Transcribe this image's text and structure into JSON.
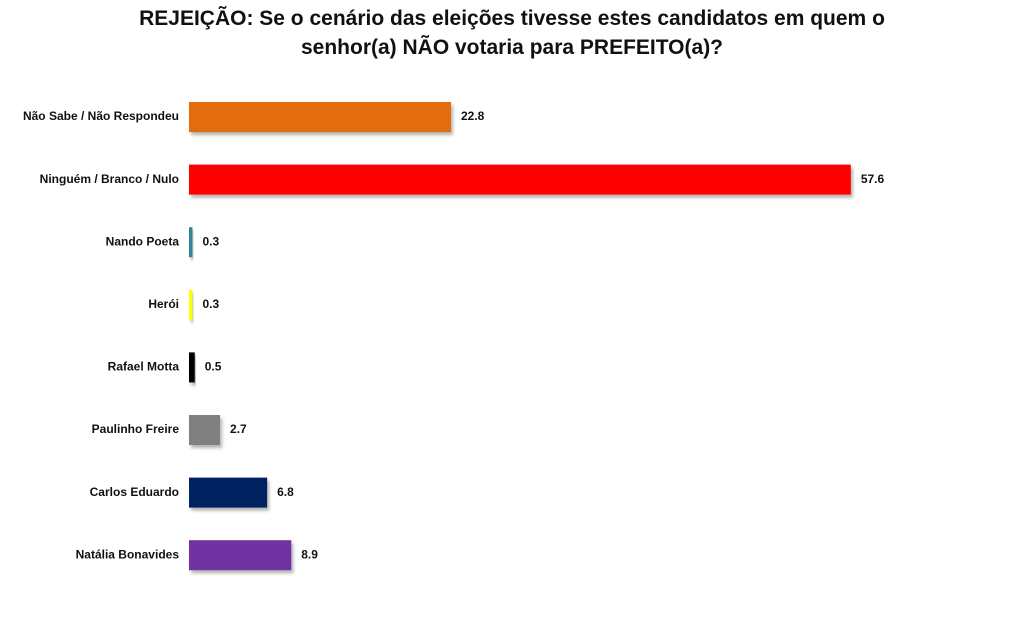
{
  "chart_data": {
    "type": "bar",
    "orientation": "horizontal",
    "title": "REJEIÇÃO: Se o cenário das eleições tivesse estes candidatos em quem o senhor(a) NÃO votaria para PREFEITO(a)?",
    "categories": [
      "Não Sabe / Não Respondeu",
      "Ninguém / Branco / Nulo",
      "Nando Poeta",
      "Herói",
      "Rafael Motta",
      "Paulinho Freire",
      "Carlos Eduardo",
      "Natália Bonavides"
    ],
    "values": [
      22.8,
      57.6,
      0.3,
      0.3,
      0.5,
      2.7,
      6.8,
      8.9
    ],
    "colors": [
      "#e36c09",
      "#ff0000",
      "#31849b",
      "#ffff00",
      "#000000",
      "#808080",
      "#002060",
      "#7030a0"
    ]
  }
}
